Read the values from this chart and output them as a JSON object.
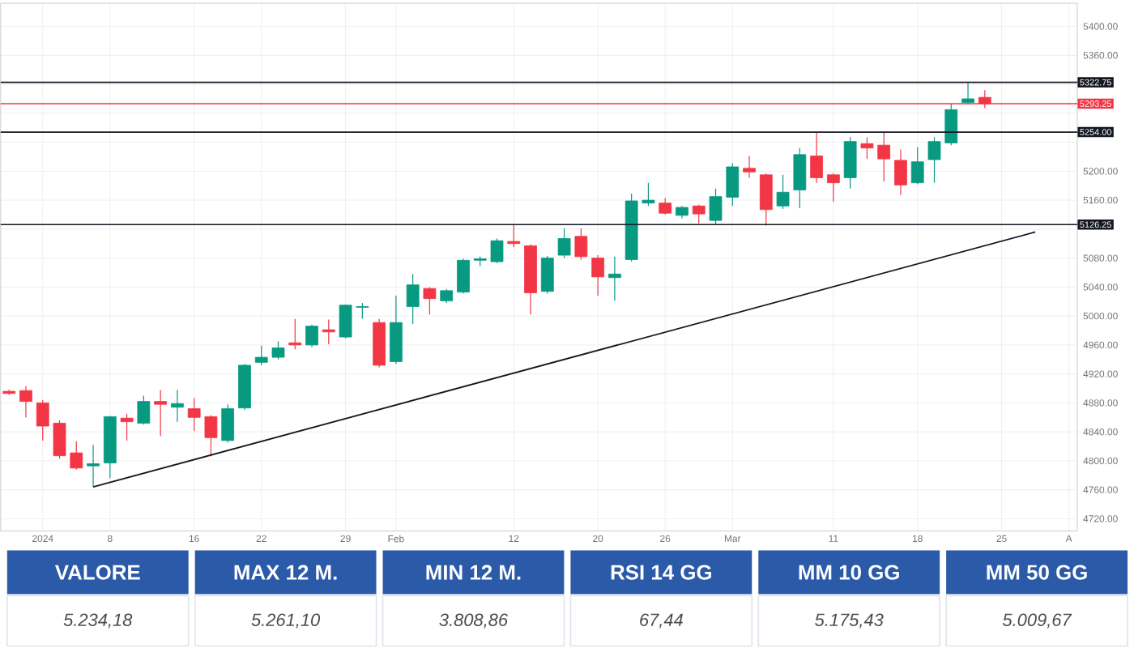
{
  "chart_data": {
    "type": "candlestick",
    "categories": [
      null,
      null,
      "2024",
      null,
      null,
      null,
      "8",
      null,
      null,
      null,
      null,
      "16",
      null,
      null,
      null,
      "22",
      null,
      null,
      null,
      null,
      "29",
      null,
      null,
      "Feb",
      null,
      null,
      null,
      null,
      null,
      null,
      "12",
      null,
      null,
      null,
      null,
      "20",
      null,
      null,
      null,
      "26",
      null,
      null,
      null,
      "Mar",
      null,
      null,
      null,
      null,
      null,
      "11",
      null,
      null,
      null,
      null,
      "18",
      null,
      null,
      null,
      null,
      "25",
      null,
      null,
      null,
      "A"
    ],
    "ohlc": [
      [
        4896,
        4898,
        4891,
        4893
      ],
      [
        4897,
        4903,
        4860,
        4882
      ],
      [
        4880,
        4884,
        4828,
        4848
      ],
      [
        4852,
        4856,
        4803,
        4807
      ],
      [
        4811,
        4827,
        4788,
        4790
      ],
      [
        4793,
        4822,
        4764,
        4796
      ],
      [
        4797,
        4862,
        4776,
        4861
      ],
      [
        4859,
        4865,
        4828,
        4854
      ],
      [
        4852,
        4890,
        4850,
        4882
      ],
      [
        4882,
        4898,
        4834,
        4878
      ],
      [
        4874,
        4898,
        4854,
        4879
      ],
      [
        4872,
        4887,
        4841,
        4860
      ],
      [
        4861,
        4863,
        4806,
        4832
      ],
      [
        4828,
        4878,
        4825,
        4872
      ],
      [
        4873,
        4934,
        4870,
        4932
      ],
      [
        4936,
        4959,
        4932,
        4943
      ],
      [
        4943,
        4965,
        4940,
        4956
      ],
      [
        4963,
        4996,
        4954,
        4960
      ],
      [
        4960,
        4988,
        4957,
        4986
      ],
      [
        4981,
        4995,
        4961,
        4978
      ],
      [
        4971,
        5016,
        4969,
        5015
      ],
      [
        5012,
        5018,
        4996,
        5013
      ],
      [
        4991,
        4996,
        4929,
        4932
      ],
      [
        4937,
        5028,
        4934,
        4991
      ],
      [
        5013,
        5058,
        4989,
        5043
      ],
      [
        5038,
        5040,
        5002,
        5024
      ],
      [
        5021,
        5037,
        5018,
        5035
      ],
      [
        5033,
        5079,
        5031,
        5077
      ],
      [
        5077,
        5082,
        5069,
        5079
      ],
      [
        5075,
        5107,
        5073,
        5104
      ],
      [
        5103,
        5127,
        5095,
        5100
      ],
      [
        5097,
        5099,
        5002,
        5032
      ],
      [
        5034,
        5083,
        5031,
        5080
      ],
      [
        5084,
        5121,
        5080,
        5107
      ],
      [
        5110,
        5121,
        5078,
        5082
      ],
      [
        5080,
        5084,
        5028,
        5054
      ],
      [
        5053,
        5082,
        5021,
        5058
      ],
      [
        5078,
        5169,
        5075,
        5159
      ],
      [
        5156,
        5184,
        5152,
        5160
      ],
      [
        5156,
        5163,
        5140,
        5142
      ],
      [
        5139,
        5152,
        5135,
        5150
      ],
      [
        5152,
        5154,
        5128,
        5141
      ],
      [
        5132,
        5176,
        5126,
        5165
      ],
      [
        5164,
        5211,
        5152,
        5206
      ],
      [
        5204,
        5221,
        5191,
        5199
      ],
      [
        5195,
        5197,
        5125,
        5147
      ],
      [
        5152,
        5195,
        5148,
        5171
      ],
      [
        5174,
        5232,
        5149,
        5223
      ],
      [
        5221,
        5253,
        5184,
        5191
      ],
      [
        5195,
        5197,
        5158,
        5184
      ],
      [
        5191,
        5247,
        5176,
        5241
      ],
      [
        5238,
        5247,
        5217,
        5232
      ],
      [
        5236,
        5253,
        5186,
        5217
      ],
      [
        5215,
        5230,
        5167,
        5181
      ],
      [
        5184,
        5233,
        5182,
        5213
      ],
      [
        5216,
        5247,
        5184,
        5241
      ],
      [
        5239,
        5293,
        5236,
        5285
      ],
      [
        5295,
        5322,
        5292,
        5300
      ],
      [
        5302,
        5312,
        5287,
        5293.25
      ],
      null,
      null,
      null,
      null,
      null
    ],
    "colors": [
      "#f23645",
      "#f23645",
      "#f23645",
      "#f23645",
      "#f23645",
      "#089981",
      "#089981",
      "#f23645",
      "#089981",
      "#f23645",
      "#089981",
      "#f23645",
      "#f23645",
      "#089981",
      "#089981",
      "#089981",
      "#089981",
      "#f23645",
      "#089981",
      "#f23645",
      "#089981",
      "#089981",
      "#f23645",
      "#089981",
      "#089981",
      "#f23645",
      "#089981",
      "#089981",
      "#089981",
      "#089981",
      "#f23645",
      "#f23645",
      "#089981",
      "#089981",
      "#f23645",
      "#f23645",
      "#089981",
      "#089981",
      "#089981",
      "#f23645",
      "#089981",
      "#f23645",
      "#089981",
      "#089981",
      "#f23645",
      "#f23645",
      "#089981",
      "#089981",
      "#f23645",
      "#f23645",
      "#089981",
      "#f23645",
      "#f23645",
      "#f23645",
      "#089981",
      "#089981",
      "#089981",
      "#089981",
      "#f23645",
      null,
      null,
      null,
      null,
      null
    ],
    "series": [
      {
        "type": "line",
        "values": [
          null,
          null,
          null,
          null,
          null,
          4764,
          null,
          null,
          null,
          null,
          null,
          null,
          null,
          null,
          null,
          null,
          null,
          null,
          null,
          null,
          null,
          null,
          null,
          null,
          null,
          null,
          null,
          null,
          null,
          null,
          null,
          null,
          null,
          null,
          null,
          null,
          null,
          null,
          null,
          null,
          null,
          null,
          null,
          null,
          null,
          null,
          null,
          null,
          null,
          null,
          null,
          null,
          null,
          null,
          null,
          null,
          null,
          null,
          null,
          null,
          null,
          5116,
          null,
          null
        ],
        "color": "#131722"
      }
    ],
    "ylim": [
      4703,
      5432
    ],
    "yticks": [
      {
        "value": 4720,
        "label": "4720.00"
      },
      {
        "value": 4760,
        "label": "4760.00"
      },
      {
        "value": 4800,
        "label": "4800.00"
      },
      {
        "value": 4840,
        "label": "4840.00"
      },
      {
        "value": 4880,
        "label": "4880.00"
      },
      {
        "value": 4920,
        "label": "4920.00"
      },
      {
        "value": 4960,
        "label": "4960.00"
      },
      {
        "value": 5000,
        "label": "5000.00"
      },
      {
        "value": 5040,
        "label": "5040.00"
      },
      {
        "value": 5080,
        "label": "5080.00"
      },
      {
        "value": 5120,
        "label": null
      },
      {
        "value": 5160,
        "label": "5160.00"
      },
      {
        "value": 5200,
        "label": "5200.00"
      },
      {
        "value": 5240,
        "label": null
      },
      {
        "value": 5280,
        "label": null
      },
      {
        "value": 5320,
        "label": null
      },
      {
        "value": 5360,
        "label": "5360.00"
      },
      {
        "value": 5400,
        "label": "5400.00"
      }
    ],
    "grid": true,
    "ref_lines": [
      {
        "axis": "y",
        "value": 5322.75,
        "label": "5322.75",
        "color": "#131722"
      },
      {
        "axis": "y",
        "value": 5293.25,
        "label": "5293.25",
        "color": "#f23645"
      },
      {
        "axis": "y",
        "value": 5254,
        "label": "5254.00",
        "color": "#131722"
      },
      {
        "axis": "y",
        "value": 5126.25,
        "label": "5126.25",
        "color": "#131722"
      }
    ],
    "annotations": [
      "VALORE",
      "MAX 12 M.",
      "MIN 12 M.",
      "RSI 14 GG",
      "MM 10 GG",
      "MM 50 GG",
      "5.234,18",
      "5.261,10",
      "3.808,86",
      "67,44",
      "5.175,43",
      "5.009,67"
    ]
  }
}
